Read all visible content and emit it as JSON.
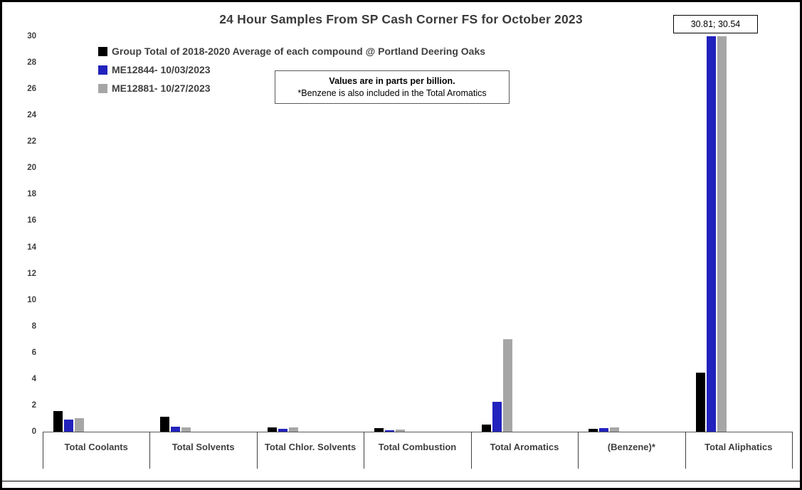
{
  "title": "24 Hour Samples From SP Cash Corner FS for October 2023",
  "annotation": {
    "text": "30.81; 30.54"
  },
  "note": {
    "line1": "Values are in parts per billion.",
    "line2": "*Benzene is also included in the Total Aromatics"
  },
  "chart_data": {
    "type": "bar",
    "title": "24 Hour Samples From SP Cash Corner FS for October 2023",
    "categories": [
      "Total Coolants",
      "Total Solvents",
      "Total Chlor. Solvents",
      "Total Combustion",
      "Total Aromatics",
      "(Benzene)*",
      "Total Aliphatics"
    ],
    "series": [
      {
        "name": "Group Total of 2018-2020 Average of each compound @ Portland Deering Oaks",
        "color": "#000000",
        "values": [
          1.55,
          1.15,
          0.35,
          0.25,
          0.55,
          0.2,
          4.5
        ]
      },
      {
        "name": "ME12844- 10/03/2023",
        "color": "#2222be",
        "values": [
          0.9,
          0.4,
          0.2,
          0.1,
          2.25,
          0.25,
          30.81
        ]
      },
      {
        "name": "ME12881- 10/27/2023",
        "color": "#a6a6a6",
        "values": [
          1.0,
          0.35,
          0.35,
          0.15,
          7.0,
          0.3,
          30.54
        ]
      }
    ],
    "ylabel": "",
    "xlabel": "",
    "ylim": [
      0,
      30
    ],
    "ytick_step": 2,
    "yticks": [
      0,
      2,
      4,
      6,
      8,
      10,
      12,
      14,
      16,
      18,
      20,
      22,
      24,
      26,
      28,
      30
    ],
    "grid": false,
    "legend_position": "top-left-inside",
    "clipped_values_note": "30.81; 30.54",
    "units": "parts per billion"
  }
}
